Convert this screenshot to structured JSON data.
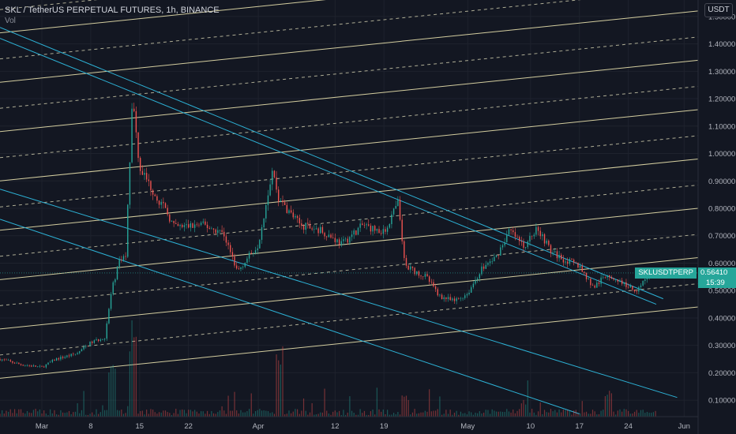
{
  "legend": {
    "title": "SKL / TetherUS PERPETUAL FUTURES, 1h, BINANCE",
    "volume_label": "Vol"
  },
  "unit_button": "USDT",
  "last_price": {
    "symbol": "SKLUSDTPERP",
    "value": "0.56410",
    "countdown": "15:39",
    "color": "#26a69a"
  },
  "colors": {
    "background": "#131722",
    "up": "#26a69a",
    "down": "#ef5350",
    "fib_lines": "#e8e1ad",
    "trend_lines": "#2db2d6"
  },
  "chart_data": {
    "type": "candlestick",
    "title": "SKL / TetherUS PERPETUAL FUTURES, 1h, BINANCE",
    "y_axis": {
      "ticks": [
        1.5,
        1.4,
        1.3,
        1.2,
        1.1,
        1.0,
        0.9,
        0.8,
        0.7,
        0.6,
        0.5,
        0.4,
        0.3,
        0.2,
        0.1
      ],
      "tick_labels": [
        "1.50000",
        "1.40000",
        "1.30000",
        "1.20000",
        "1.10000",
        "1.00000",
        "0.90000",
        "0.80000",
        "0.70000",
        "0.60000",
        "0.50000",
        "0.40000",
        "0.30000",
        "0.20000",
        "0.10000"
      ],
      "ylim": [
        0.04,
        1.56
      ],
      "side": "right"
    },
    "x_axis": {
      "tick_labels": [
        "Mar",
        "8",
        "15",
        "22",
        "Apr",
        "12",
        "19",
        "May",
        "10",
        "17",
        "24",
        "Jun"
      ],
      "tick_dates": [
        "2021-03-01",
        "2021-03-08",
        "2021-03-15",
        "2021-03-22",
        "2021-04-01",
        "2021-04-12",
        "2021-04-19",
        "2021-05-01",
        "2021-05-10",
        "2021-05-17",
        "2021-05-24",
        "2021-06-01"
      ],
      "xlim": [
        "2021-02-23",
        "2021-06-03"
      ]
    },
    "price_path": [
      [
        "2021-02-23",
        0.25
      ],
      [
        "2021-02-26",
        0.23
      ],
      [
        "2021-03-01",
        0.22
      ],
      [
        "2021-03-03",
        0.25
      ],
      [
        "2021-03-06",
        0.27
      ],
      [
        "2021-03-08",
        0.31
      ],
      [
        "2021-03-10",
        0.33
      ],
      [
        "2021-03-11",
        0.5
      ],
      [
        "2021-03-12",
        0.6
      ],
      [
        "2021-03-13",
        0.63
      ],
      [
        "2021-03-14",
        1.2
      ],
      [
        "2021-03-15",
        0.95
      ],
      [
        "2021-03-17",
        0.86
      ],
      [
        "2021-03-19",
        0.78
      ],
      [
        "2021-03-20",
        0.73
      ],
      [
        "2021-03-24",
        0.74
      ],
      [
        "2021-03-27",
        0.71
      ],
      [
        "2021-03-29",
        0.57
      ],
      [
        "2021-04-01",
        0.67
      ],
      [
        "2021-04-03",
        0.94
      ],
      [
        "2021-04-04",
        0.83
      ],
      [
        "2021-04-07",
        0.74
      ],
      [
        "2021-04-10",
        0.72
      ],
      [
        "2021-04-13",
        0.67
      ],
      [
        "2021-04-16",
        0.74
      ],
      [
        "2021-04-19",
        0.71
      ],
      [
        "2021-04-21",
        0.82
      ],
      [
        "2021-04-22",
        0.59
      ],
      [
        "2021-04-25",
        0.55
      ],
      [
        "2021-04-27",
        0.48
      ],
      [
        "2021-04-29",
        0.46
      ],
      [
        "2021-05-01",
        0.49
      ],
      [
        "2021-05-03",
        0.58
      ],
      [
        "2021-05-05",
        0.62
      ],
      [
        "2021-05-07",
        0.72
      ],
      [
        "2021-05-09",
        0.66
      ],
      [
        "2021-05-11",
        0.73
      ],
      [
        "2021-05-13",
        0.64
      ],
      [
        "2021-05-15",
        0.61
      ],
      [
        "2021-05-17",
        0.59
      ],
      [
        "2021-05-19",
        0.51
      ],
      [
        "2021-05-21",
        0.56
      ],
      [
        "2021-05-23",
        0.53
      ],
      [
        "2021-05-25",
        0.5
      ],
      [
        "2021-05-27",
        0.56
      ],
      [
        "2021-05-28",
        0.564
      ]
    ],
    "volume_spikes": [
      [
        "2021-03-11",
        0.6
      ],
      [
        "2021-03-14",
        1.0
      ],
      [
        "2021-04-04",
        0.85
      ],
      [
        "2021-04-22",
        0.25
      ],
      [
        "2021-05-09",
        0.2
      ],
      [
        "2021-05-21",
        0.3
      ]
    ],
    "channel_lines": {
      "description": "parallel ascending lines, solid and dashed alternating",
      "style_sequence": [
        "solid",
        "dashed",
        "solid",
        "dashed",
        "solid",
        "dashed",
        "solid",
        "dashed",
        "solid",
        "dashed",
        "solid",
        "dashed",
        "solid",
        "dashed",
        "solid",
        "dashed",
        "solid",
        "dashed",
        "solid"
      ],
      "start_date": "2021-02-23",
      "end_date": "2021-06-01",
      "start_values": [
        0.18,
        0.265,
        0.36,
        0.445,
        0.54,
        0.625,
        0.72,
        0.805,
        0.9,
        0.985,
        1.08,
        1.165,
        1.26,
        1.345,
        1.44,
        1.525,
        1.62,
        1.705,
        1.8
      ],
      "slope_per_day": 0.0026
    },
    "trend_lines": [
      {
        "start": [
          "2021-02-23",
          1.46
        ],
        "end": [
          "2021-05-29",
          0.47
        ]
      },
      {
        "start": [
          "2021-02-23",
          1.42
        ],
        "end": [
          "2021-05-28",
          0.45
        ]
      },
      {
        "start": [
          "2021-02-23",
          0.87
        ],
        "end": [
          "2021-05-31",
          0.11
        ]
      },
      {
        "start": [
          "2021-02-23",
          0.76
        ],
        "end": [
          "2021-05-17",
          0.05
        ]
      }
    ],
    "last_value": 0.5641
  }
}
